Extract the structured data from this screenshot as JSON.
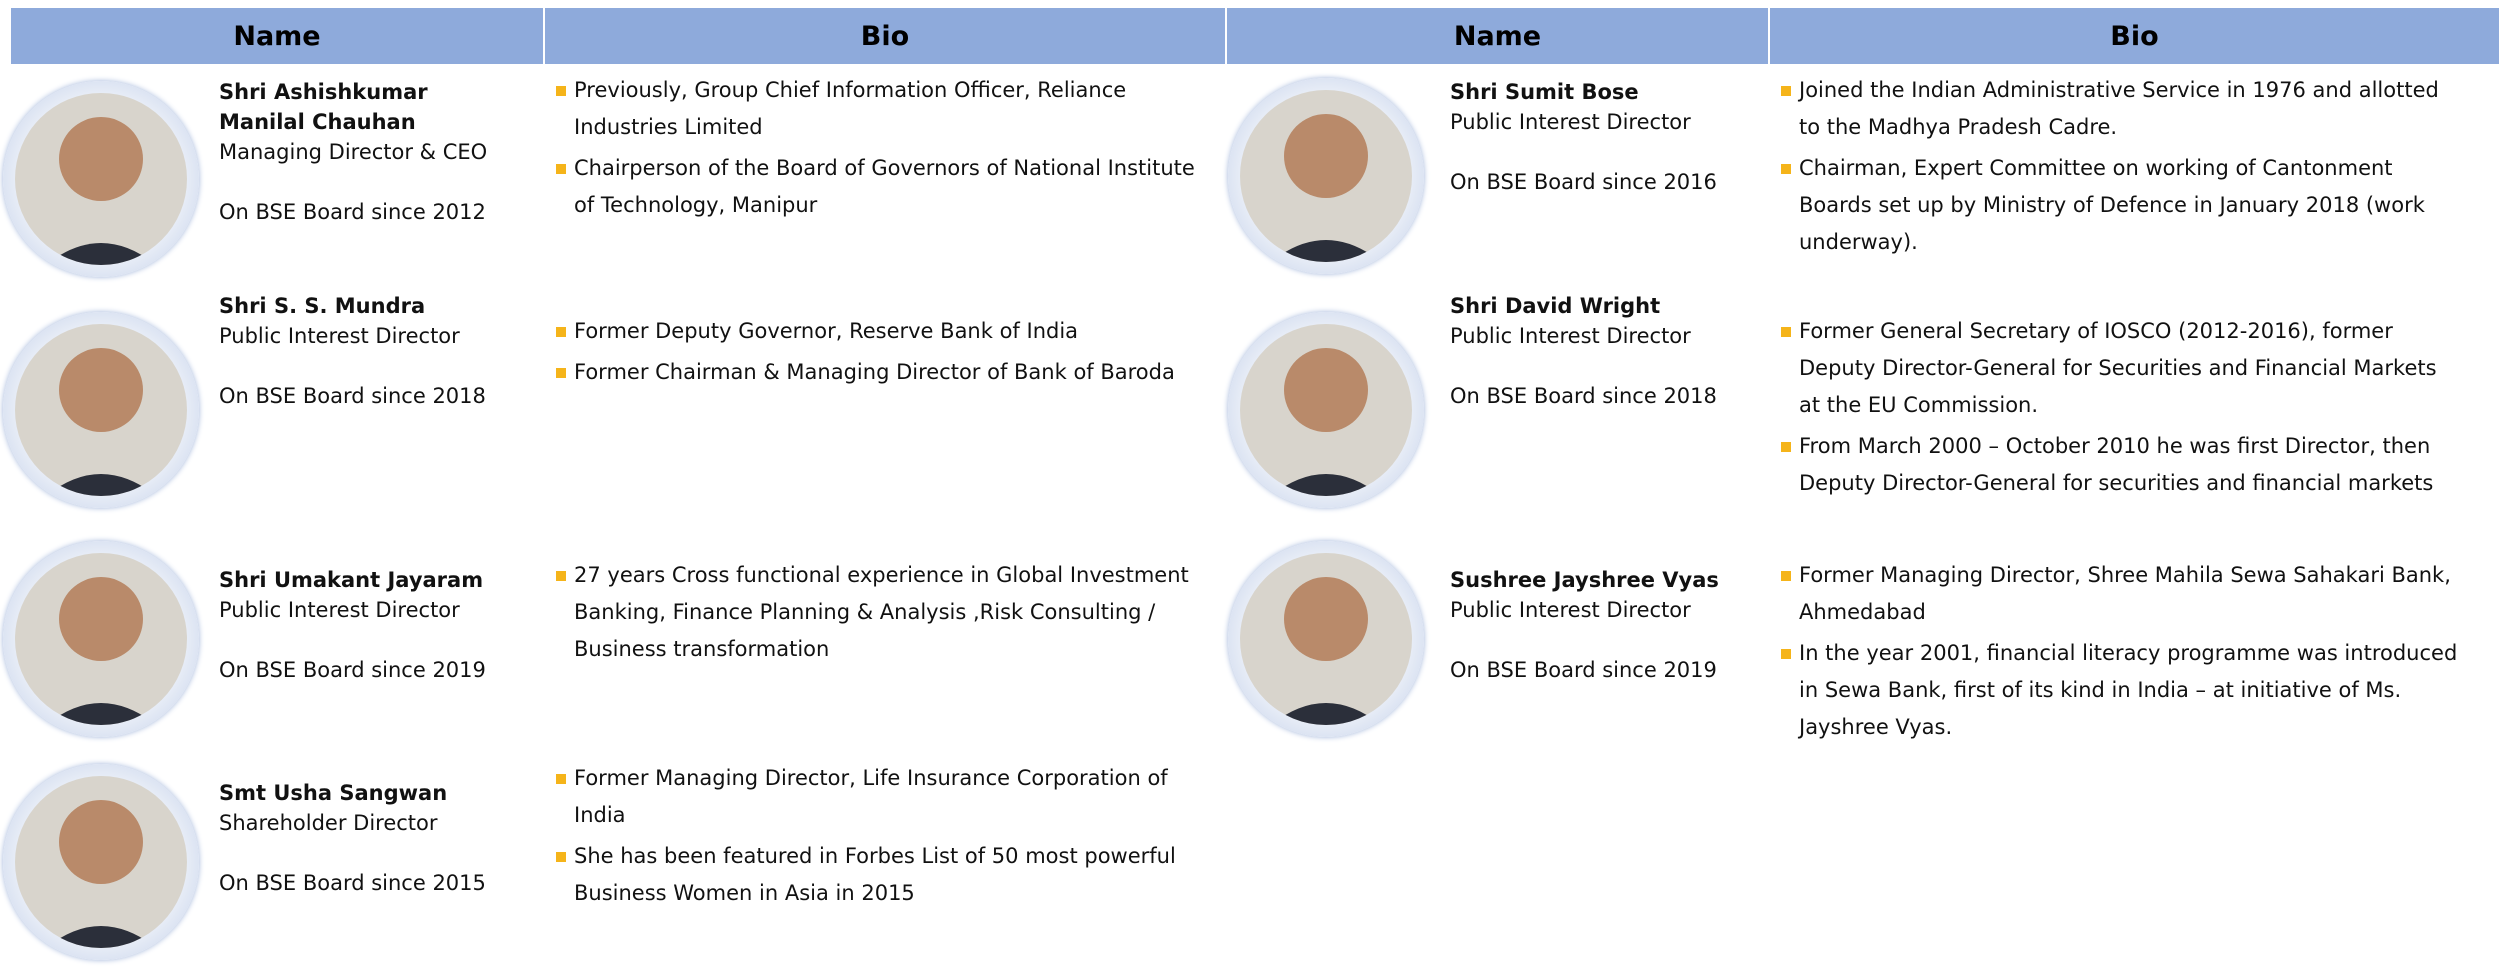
{
  "tables": [
    {
      "headers": [
        "Name",
        "Bio"
      ],
      "rows": [
        {
          "name": "Shri Ashishkumar Manilal Chauhan",
          "role": "Managing Director & CEO",
          "since": "On BSE Board since 2012",
          "bio": [
            "Previously, Group Chief Information Officer, Reliance Industries Limited",
            "Chairperson of the Board of Governors of National Institute of Technology, Manipur"
          ]
        },
        {
          "name": "Shri S. S. Mundra",
          "role": "Public Interest Director",
          "since": "On BSE Board since 2018",
          "bio": [
            "Former Deputy Governor, Reserve Bank of India",
            "Former Chairman & Managing Director of Bank of Baroda"
          ]
        },
        {
          "name": "Shri Umakant Jayaram",
          "role": "Public Interest Director",
          "since": "On BSE Board since 2019",
          "bio": [
            "27 years Cross functional experience in Global Investment Banking, Finance Planning & Analysis ,Risk Consulting / Business transformation"
          ]
        },
        {
          "name": "Smt Usha Sangwan",
          "role": "Shareholder Director",
          "since": "On BSE Board since 2015",
          "bio": [
            "Former Managing Director, Life Insurance Corporation of India",
            "She has been featured in Forbes List of 50 most powerful Business Women in Asia in 2015"
          ]
        }
      ]
    },
    {
      "headers": [
        "Name",
        "Bio"
      ],
      "rows": [
        {
          "name": "Shri Sumit Bose",
          "role": "Public Interest Director",
          "since": "On BSE Board since 2016",
          "bio": [
            "Joined the Indian Administrative Service in 1976 and allotted to the Madhya Pradesh Cadre.",
            "Chairman, Expert Committee on working of Cantonment Boards set up by Ministry of Defence in January 2018 (work underway)."
          ]
        },
        {
          "name": "Shri David Wright",
          "role": "Public Interest Director",
          "since": "On BSE Board since 2018",
          "bio": [
            "Former General Secretary of IOSCO (2012-2016), former Deputy Director-General for Securities and Financial Markets at the EU Commission.",
            "From March 2000 – October 2010 he was first Director, then Deputy Director-General for securities and financial markets"
          ]
        },
        {
          "name": "Sushree Jayshree Vyas",
          "role": "Public Interest Director",
          "since": "On BSE Board since 2019",
          "bio": [
            "Former Managing Director, Shree Mahila Sewa Sahakari Bank, Ahmedabad",
            "In the year 2001, financial literacy programme was introduced in Sewa Bank, first of its kind in India – at initiative of Ms. Jayshree Vyas."
          ]
        }
      ]
    }
  ]
}
